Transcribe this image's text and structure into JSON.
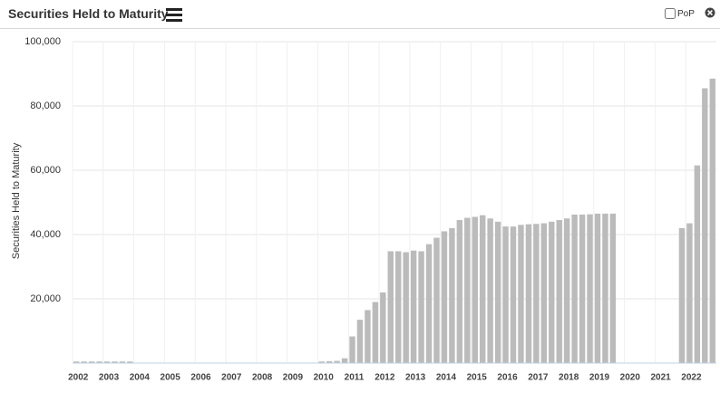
{
  "ui": {
    "title": "Securities Held to Maturity",
    "pop_label": "PoP"
  },
  "chart_data": {
    "type": "bar",
    "y_label": "Securities Held to Maturity",
    "color": "#bbbbbb",
    "grid": true,
    "categories": [
      "2002",
      null,
      null,
      null,
      "2003",
      null,
      null,
      null,
      "2004",
      null,
      null,
      null,
      "2005",
      null,
      null,
      null,
      "2006",
      null,
      null,
      null,
      "2007",
      null,
      null,
      null,
      "2008",
      null,
      null,
      null,
      "2009",
      null,
      null,
      null,
      "2010",
      null,
      null,
      null,
      "2011",
      null,
      null,
      null,
      "2012",
      null,
      null,
      null,
      "2013",
      null,
      null,
      null,
      "2014",
      null,
      null,
      null,
      "2015",
      null,
      null,
      null,
      "2016",
      null,
      null,
      null,
      "2017",
      null,
      null,
      null,
      "2018",
      null,
      null,
      null,
      "2019",
      null,
      null,
      null,
      "2020",
      null,
      null,
      null,
      "2021",
      null,
      null,
      null,
      "2022",
      null,
      null,
      null
    ],
    "values": [
      500,
      500,
      500,
      500,
      500,
      500,
      500,
      500,
      null,
      null,
      null,
      null,
      null,
      null,
      null,
      null,
      null,
      null,
      null,
      null,
      null,
      null,
      null,
      null,
      null,
      null,
      null,
      null,
      null,
      null,
      null,
      null,
      500,
      600,
      700,
      1500,
      8300,
      13500,
      16500,
      19000,
      22000,
      34800,
      34800,
      34500,
      35000,
      34800,
      37000,
      39000,
      41000,
      42000,
      44500,
      45200,
      45500,
      46000,
      45000,
      44000,
      42500,
      42500,
      43000,
      43200,
      43300,
      43500,
      44000,
      44500,
      45000,
      46200,
      46200,
      46300,
      46500,
      46500,
      46500,
      null,
      null,
      null,
      null,
      null,
      null,
      null,
      null,
      42000,
      43500,
      61500,
      85500,
      88500
    ],
    "ylim": [
      0,
      100000
    ],
    "yticks": [
      {
        "value": 20000,
        "label": "20,000"
      },
      {
        "value": 40000,
        "label": "40,000"
      },
      {
        "value": 60000,
        "label": "60,000"
      },
      {
        "value": 80000,
        "label": "80,000"
      },
      {
        "value": 100000,
        "label": "100,000"
      }
    ]
  }
}
